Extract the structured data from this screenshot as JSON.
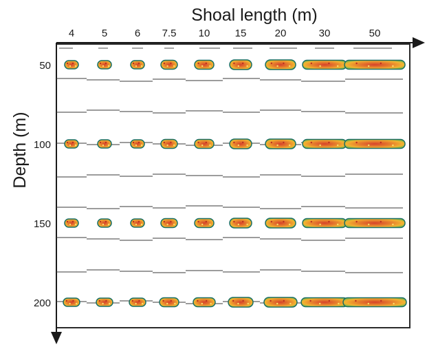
{
  "chart_data": {
    "type": "scatter",
    "title": "",
    "xlabel": "Shoal length (m)",
    "ylabel": "Depth (m)",
    "x_tick_labels": [
      "4",
      "5",
      "6",
      "7.5",
      "10",
      "15",
      "20",
      "30",
      "50"
    ],
    "y_tick_labels": [
      "50",
      "100",
      "150",
      "200"
    ],
    "x_scale": "categorical",
    "y_ticks": [
      50,
      100,
      150,
      200
    ],
    "grid": false,
    "legend": "none",
    "colors": {
      "axis": "#1a1a1a",
      "frame": "#2a2a2a",
      "guide_lines": "#3a3a3a",
      "shoal_outline": "#1a6e64",
      "shoal_fill_core": "#d6422a",
      "shoal_fill_mid": "#f3b330",
      "shoal_fill_edge": "#78b84b"
    }
  }
}
